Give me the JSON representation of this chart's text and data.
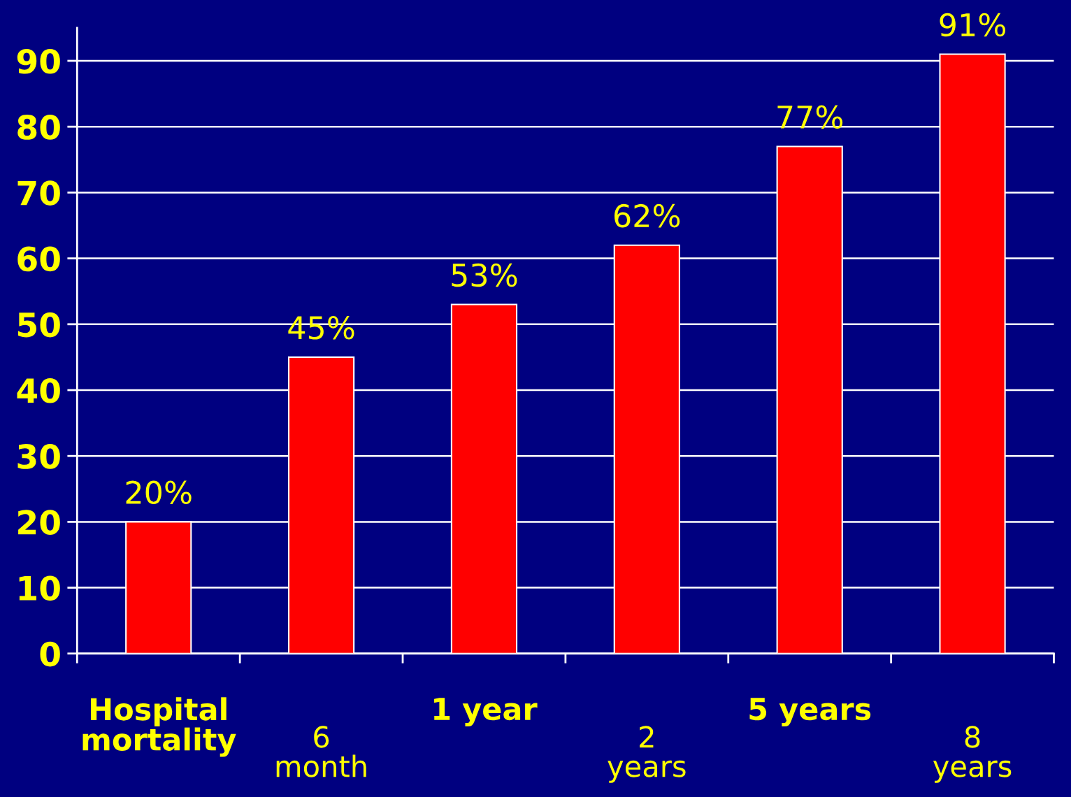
{
  "chart_data": {
    "type": "bar",
    "categories": [
      "Hospital\nmortality",
      "6\nmonth",
      "1 year",
      "2\nyears",
      "5 years",
      "8\nyears"
    ],
    "values": [
      20,
      45,
      53,
      62,
      77,
      91
    ],
    "value_labels": [
      "20%",
      "45%",
      "53%",
      "62%",
      "77%",
      "91%"
    ],
    "color": "#ff0000",
    "ylim": [
      0,
      95
    ],
    "yticks": [
      0,
      10,
      20,
      30,
      40,
      50,
      60,
      70,
      80,
      90
    ],
    "grid": "y"
  }
}
